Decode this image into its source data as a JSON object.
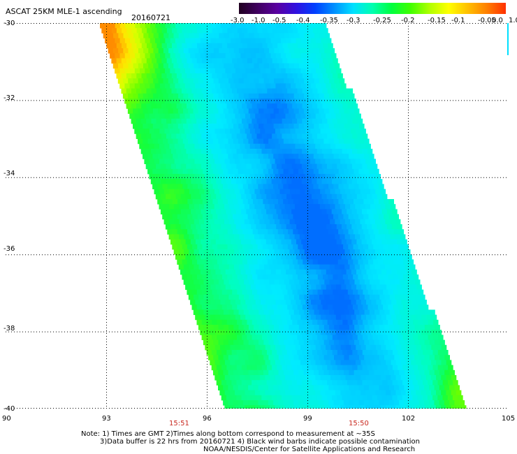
{
  "header": {
    "title": "ASCAT 25KM MLE-1 ascending",
    "date": "20160721"
  },
  "colorbar": {
    "ticks": [
      "-3.0",
      "-1.0",
      "-0.5",
      "-0.4",
      "-0.35",
      "-0.3",
      "-0.25",
      "-0.2",
      "-0.15",
      "-0.1",
      "-0.05",
      "0.0",
      "1.0"
    ],
    "colors": [
      "#200020",
      "#400060",
      "#5a00a0",
      "#3010e0",
      "#0040ff",
      "#0090ff",
      "#00e0ff",
      "#00ffb0",
      "#00ff40",
      "#40ff00",
      "#b0ff00",
      "#ffff00",
      "#ffc000",
      "#ff8000",
      "#ff3000"
    ]
  },
  "map": {
    "lat_labels": [
      "-30",
      "-32",
      "-34",
      "-36",
      "-38",
      "-40"
    ],
    "lon_labels": [
      "90",
      "93",
      "96",
      "99",
      "102",
      "105"
    ],
    "pass_times": [
      "15:51",
      "15:50"
    ],
    "lon_range": [
      90,
      105
    ],
    "lat_range": [
      -40,
      -30
    ]
  },
  "notes": {
    "line1": "Note: 1) Times are GMT 2)Times along bottom correspond to measurement at ~35S",
    "line2": "3)Data buffer is 22 hrs from 20160721 4) Black wind barbs indicate possible contamination",
    "line3": "NOAA/NESDIS/Center for Satellite Applications and Research"
  }
}
